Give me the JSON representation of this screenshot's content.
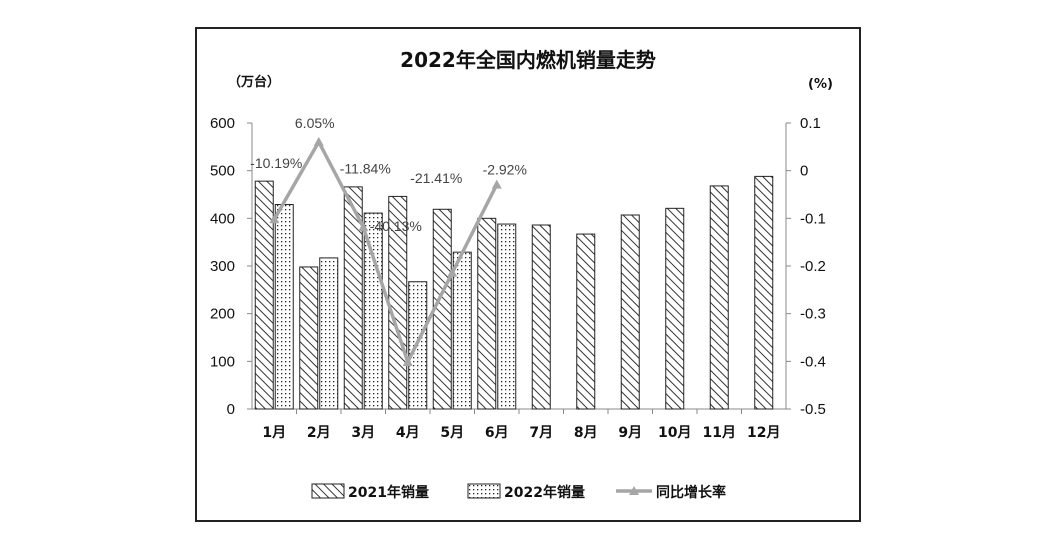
{
  "chart_data": {
    "type": "bar",
    "title": "2022年全国内燃机销量走势",
    "y_left_unit": "（万台）",
    "y_right_unit": "(%)",
    "categories": [
      "1月",
      "2月",
      "3月",
      "4月",
      "5月",
      "6月",
      "7月",
      "8月",
      "9月",
      "10月",
      "11月",
      "12月"
    ],
    "ylim_left": [
      0,
      600
    ],
    "yticks_left": [
      "600",
      "500",
      "400",
      "300",
      "200",
      "100",
      "0"
    ],
    "ylim_right": [
      -0.5,
      0.1
    ],
    "yticks_right": [
      "0.1",
      "0",
      "-0.1",
      "-0.2",
      "-0.3",
      "-0.4",
      "-0.5"
    ],
    "series": [
      {
        "name": "2021年销量",
        "type": "bar",
        "pattern": "diagonal",
        "values": [
          478,
          298,
          466,
          446,
          419,
          400,
          386,
          367,
          407,
          421,
          468,
          488
        ]
      },
      {
        "name": "2022年销量",
        "type": "bar",
        "pattern": "dotted",
        "values": [
          429,
          317,
          411,
          267,
          329,
          388,
          null,
          null,
          null,
          null,
          null,
          null
        ]
      },
      {
        "name": "同比增长率",
        "type": "line",
        "axis": "right",
        "color": "#a6a6a6",
        "values": [
          -0.1019,
          0.0605,
          -0.1184,
          -0.4013,
          -0.2141,
          -0.0292,
          null,
          null,
          null,
          null,
          null,
          null
        ],
        "labels": [
          "-10.19%",
          "6.05%",
          "-11.84%",
          "-40.13%",
          "-21.41%",
          "-2.92%"
        ]
      }
    ],
    "grid": false,
    "legend_position": "bottom"
  }
}
